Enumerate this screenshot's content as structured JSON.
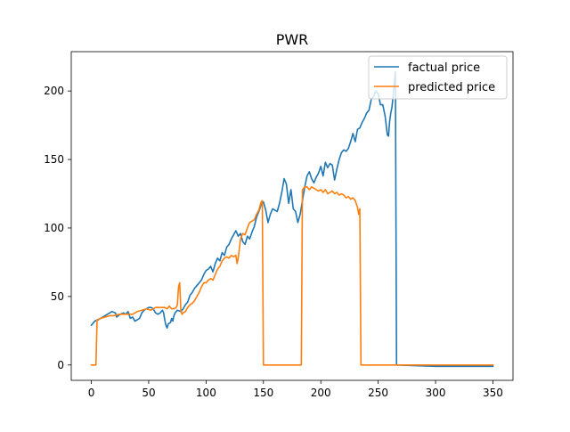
{
  "chart_data": {
    "type": "line",
    "title": "PWR",
    "xlabel": "",
    "ylabel": "",
    "xlim": [
      -17.5,
      367.5
    ],
    "ylim": [
      -11.2,
      228.7
    ],
    "x_ticks": [
      0,
      50,
      100,
      150,
      200,
      250,
      300,
      350
    ],
    "y_ticks": [
      0,
      50,
      100,
      150,
      200
    ],
    "grid": false,
    "legend_position": "top-right",
    "series": [
      {
        "name": "factual price",
        "color": "#1f77b4",
        "points": [
          [
            0,
            29
          ],
          [
            3,
            32
          ],
          [
            6,
            33
          ],
          [
            10,
            35
          ],
          [
            14,
            37
          ],
          [
            18,
            39
          ],
          [
            21,
            38
          ],
          [
            22,
            35
          ],
          [
            25,
            37
          ],
          [
            28,
            38
          ],
          [
            30,
            37
          ],
          [
            32,
            39
          ],
          [
            34,
            34
          ],
          [
            36,
            35
          ],
          [
            38,
            32
          ],
          [
            40,
            33
          ],
          [
            42,
            34
          ],
          [
            44,
            38
          ],
          [
            46,
            40
          ],
          [
            48,
            41
          ],
          [
            50,
            42
          ],
          [
            52,
            42
          ],
          [
            54,
            41
          ],
          [
            56,
            38
          ],
          [
            58,
            37
          ],
          [
            60,
            38
          ],
          [
            62,
            40
          ],
          [
            63,
            38
          ],
          [
            64,
            33
          ],
          [
            65,
            29
          ],
          [
            66,
            27
          ],
          [
            67,
            30
          ],
          [
            69,
            31
          ],
          [
            70,
            34
          ],
          [
            71,
            32
          ],
          [
            72,
            36
          ],
          [
            73,
            38
          ],
          [
            75,
            40
          ],
          [
            78,
            39
          ],
          [
            80,
            41
          ],
          [
            82,
            44
          ],
          [
            84,
            46
          ],
          [
            86,
            51
          ],
          [
            88,
            53
          ],
          [
            90,
            56
          ],
          [
            92,
            58
          ],
          [
            94,
            60
          ],
          [
            96,
            62
          ],
          [
            98,
            66
          ],
          [
            100,
            69
          ],
          [
            102,
            70
          ],
          [
            104,
            72
          ],
          [
            106,
            68
          ],
          [
            108,
            74
          ],
          [
            110,
            78
          ],
          [
            112,
            76
          ],
          [
            114,
            82
          ],
          [
            116,
            80
          ],
          [
            118,
            86
          ],
          [
            120,
            88
          ],
          [
            122,
            92
          ],
          [
            124,
            95
          ],
          [
            126,
            98
          ],
          [
            128,
            94
          ],
          [
            130,
            96
          ],
          [
            132,
            90
          ],
          [
            134,
            88
          ],
          [
            136,
            94
          ],
          [
            138,
            92
          ],
          [
            140,
            97
          ],
          [
            142,
            101
          ],
          [
            144,
            108
          ],
          [
            146,
            112
          ],
          [
            148,
            117
          ],
          [
            150,
            119
          ],
          [
            152,
            113
          ],
          [
            154,
            104
          ],
          [
            156,
            110
          ],
          [
            158,
            114
          ],
          [
            160,
            113
          ],
          [
            162,
            112
          ],
          [
            164,
            118
          ],
          [
            166,
            126
          ],
          [
            168,
            136
          ],
          [
            170,
            132
          ],
          [
            172,
            118
          ],
          [
            174,
            128
          ],
          [
            176,
            114
          ],
          [
            178,
            112
          ],
          [
            180,
            104
          ],
          [
            182,
            110
          ],
          [
            184,
            120
          ],
          [
            186,
            130
          ],
          [
            188,
            138
          ],
          [
            190,
            141
          ],
          [
            192,
            136
          ],
          [
            194,
            133
          ],
          [
            196,
            137
          ],
          [
            198,
            140
          ],
          [
            200,
            145
          ],
          [
            202,
            138
          ],
          [
            204,
            148
          ],
          [
            206,
            144
          ],
          [
            208,
            147
          ],
          [
            210,
            146
          ],
          [
            212,
            135
          ],
          [
            214,
            143
          ],
          [
            216,
            150
          ],
          [
            218,
            155
          ],
          [
            220,
            157
          ],
          [
            222,
            156
          ],
          [
            224,
            158
          ],
          [
            226,
            163
          ],
          [
            228,
            169
          ],
          [
            230,
            163
          ],
          [
            232,
            172
          ],
          [
            234,
            173
          ],
          [
            236,
            177
          ],
          [
            238,
            180
          ],
          [
            240,
            184
          ],
          [
            242,
            186
          ],
          [
            244,
            194
          ],
          [
            246,
            196
          ],
          [
            248,
            200
          ],
          [
            250,
            198
          ],
          [
            252,
            190
          ],
          [
            254,
            190
          ],
          [
            256,
            182
          ],
          [
            257,
            175
          ],
          [
            258,
            168
          ],
          [
            259,
            167
          ],
          [
            260,
            178
          ],
          [
            261,
            184
          ],
          [
            262,
            188
          ],
          [
            263,
            196
          ],
          [
            264,
            205
          ],
          [
            265,
            214
          ],
          [
            266,
            0
          ],
          [
            300,
            -1
          ],
          [
            350,
            -1
          ]
        ]
      },
      {
        "name": "predicted price",
        "color": "#ff7f0e",
        "points": [
          [
            0,
            0
          ],
          [
            4,
            0
          ],
          [
            5,
            33
          ],
          [
            8,
            34
          ],
          [
            12,
            35
          ],
          [
            16,
            36
          ],
          [
            20,
            36
          ],
          [
            24,
            37
          ],
          [
            28,
            37
          ],
          [
            32,
            37
          ],
          [
            36,
            37
          ],
          [
            40,
            39
          ],
          [
            44,
            40
          ],
          [
            48,
            41
          ],
          [
            52,
            40
          ],
          [
            56,
            42
          ],
          [
            60,
            42
          ],
          [
            64,
            42
          ],
          [
            66,
            41
          ],
          [
            68,
            43
          ],
          [
            70,
            41
          ],
          [
            72,
            41
          ],
          [
            74,
            42
          ],
          [
            75,
            44
          ],
          [
            76,
            57
          ],
          [
            77,
            60
          ],
          [
            78,
            40
          ],
          [
            79,
            37
          ],
          [
            80,
            38
          ],
          [
            82,
            39
          ],
          [
            84,
            42
          ],
          [
            86,
            44
          ],
          [
            88,
            45
          ],
          [
            90,
            47
          ],
          [
            92,
            50
          ],
          [
            94,
            53
          ],
          [
            96,
            57
          ],
          [
            98,
            60
          ],
          [
            100,
            60
          ],
          [
            102,
            62
          ],
          [
            104,
            63
          ],
          [
            106,
            62
          ],
          [
            108,
            66
          ],
          [
            110,
            70
          ],
          [
            112,
            72
          ],
          [
            114,
            76
          ],
          [
            116,
            78
          ],
          [
            118,
            79
          ],
          [
            120,
            78
          ],
          [
            122,
            80
          ],
          [
            124,
            79
          ],
          [
            126,
            80
          ],
          [
            127,
            74
          ],
          [
            128,
            78
          ],
          [
            130,
            92
          ],
          [
            132,
            96
          ],
          [
            134,
            95
          ],
          [
            136,
            100
          ],
          [
            138,
            104
          ],
          [
            140,
            105
          ],
          [
            142,
            106
          ],
          [
            144,
            110
          ],
          [
            146,
            113
          ],
          [
            148,
            119
          ],
          [
            149,
            120
          ],
          [
            150,
            0
          ],
          [
            160,
            0
          ],
          [
            170,
            0
          ],
          [
            183,
            0
          ],
          [
            184,
            128
          ],
          [
            186,
            130
          ],
          [
            188,
            130
          ],
          [
            190,
            128
          ],
          [
            192,
            130
          ],
          [
            194,
            129
          ],
          [
            196,
            128
          ],
          [
            198,
            127
          ],
          [
            200,
            128
          ],
          [
            202,
            126
          ],
          [
            204,
            128
          ],
          [
            206,
            125
          ],
          [
            208,
            126
          ],
          [
            210,
            127
          ],
          [
            212,
            125
          ],
          [
            214,
            126
          ],
          [
            216,
            124
          ],
          [
            218,
            125
          ],
          [
            220,
            124
          ],
          [
            222,
            122
          ],
          [
            224,
            123
          ],
          [
            226,
            121
          ],
          [
            228,
            122
          ],
          [
            230,
            120
          ],
          [
            232,
            115
          ],
          [
            233,
            110
          ],
          [
            234,
            114
          ],
          [
            235,
            0
          ],
          [
            300,
            0
          ],
          [
            350,
            0
          ]
        ]
      }
    ]
  }
}
